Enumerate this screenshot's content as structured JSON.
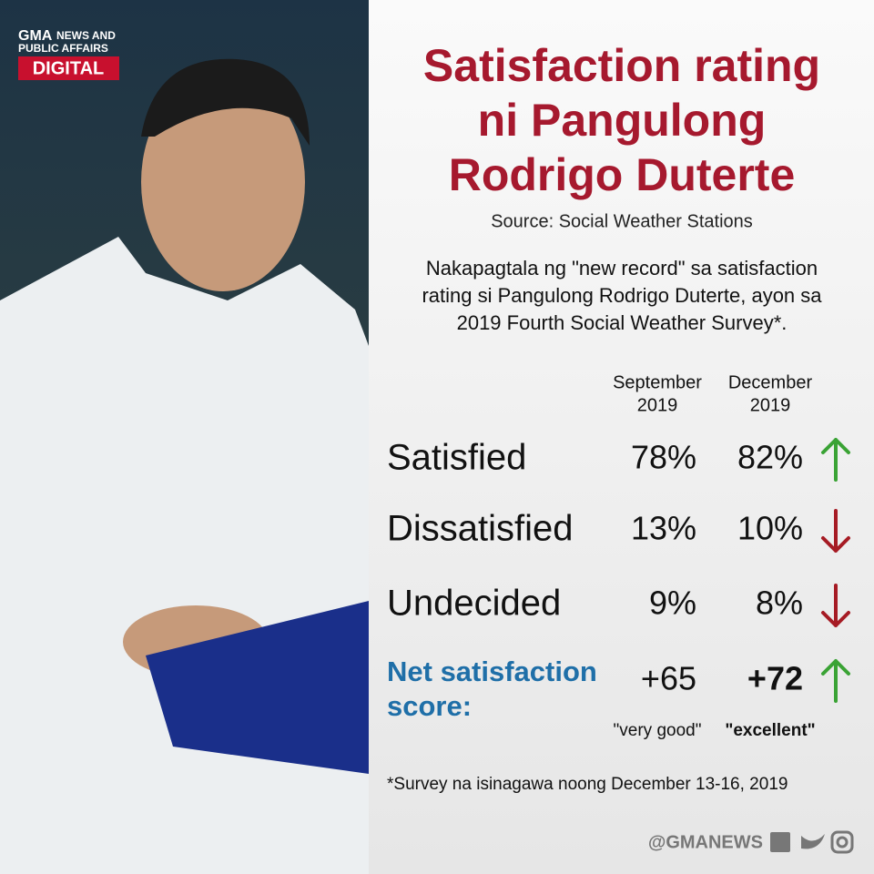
{
  "logo": {
    "brand": "GMA",
    "sub_lines": [
      "NEWS AND",
      "PUBLIC AFFAIRS"
    ],
    "tag": "DIGITAL"
  },
  "header": {
    "title_lines": [
      "Satisfaction rating",
      "ni Pangulong",
      "Rodrigo Duterte"
    ],
    "source": "Source: Social Weather Stations"
  },
  "intro_lines": [
    "Nakapagtala ng \"new record\" sa satisfaction",
    "rating si Pangulong Rodrigo Duterte, ayon sa",
    "2019 Fourth Social Weather Survey*."
  ],
  "table": {
    "columns": [
      [
        "September",
        "2019"
      ],
      [
        "December",
        "2019"
      ]
    ],
    "rows": [
      {
        "label": "Satisfied",
        "values": [
          "78%",
          "82%"
        ],
        "trend": "up"
      },
      {
        "label": "Dissatisfied",
        "values": [
          "13%",
          "10%"
        ],
        "trend": "down"
      },
      {
        "label": "Undecided",
        "values": [
          "9%",
          "8%"
        ],
        "trend": "down"
      }
    ],
    "net": {
      "label_lines": [
        "Net satisfaction",
        "score:"
      ],
      "values": [
        "+65",
        "+72"
      ],
      "notes": [
        "\"very good\"",
        "\"excellent\""
      ],
      "trend": "up"
    }
  },
  "footnote": "*Survey na isinagawa noong December 13-16, 2019",
  "handle": "@GMANEWS"
}
